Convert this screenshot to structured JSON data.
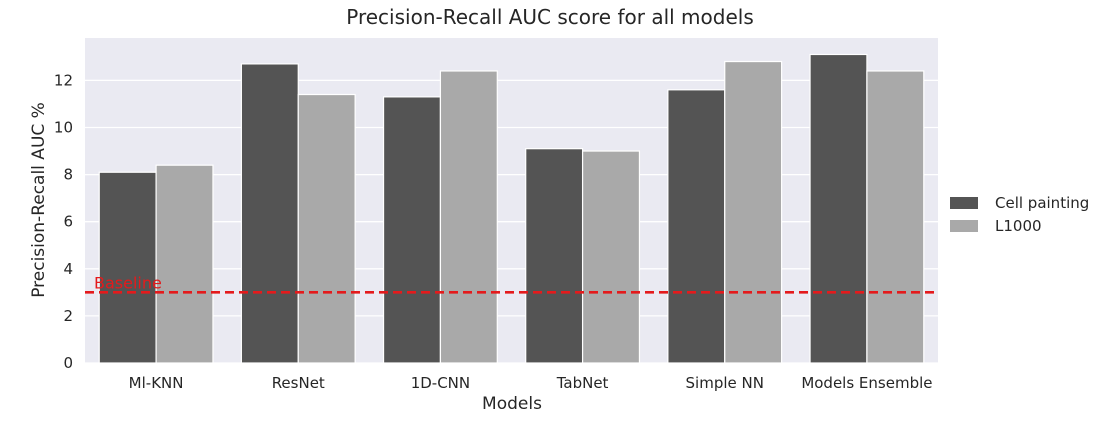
{
  "chart_data": {
    "type": "bar",
    "title": "Precision-Recall AUC score for all models",
    "xlabel": "Models",
    "ylabel": "Precision-Recall AUC %",
    "categories": [
      "Ml-KNN",
      "ResNet",
      "1D-CNN",
      "TabNet",
      "Simple NN",
      "Models Ensemble"
    ],
    "series": [
      {
        "name": "Cell painting",
        "color": "#545454",
        "values": [
          8.1,
          12.7,
          11.3,
          9.1,
          11.6,
          13.1
        ]
      },
      {
        "name": "L1000",
        "color": "#a9a9a9",
        "values": [
          8.4,
          11.4,
          12.4,
          9.0,
          12.8,
          12.4
        ]
      }
    ],
    "ylim": [
      0,
      13.8
    ],
    "yticks": [
      "0",
      "2",
      "4",
      "6",
      "8",
      "10",
      "12"
    ],
    "grid": true,
    "legend_position": "right",
    "baseline": {
      "value": 3.0,
      "label": "Baseline",
      "color": "#e41a1c"
    },
    "background": "#eaeaf2"
  }
}
